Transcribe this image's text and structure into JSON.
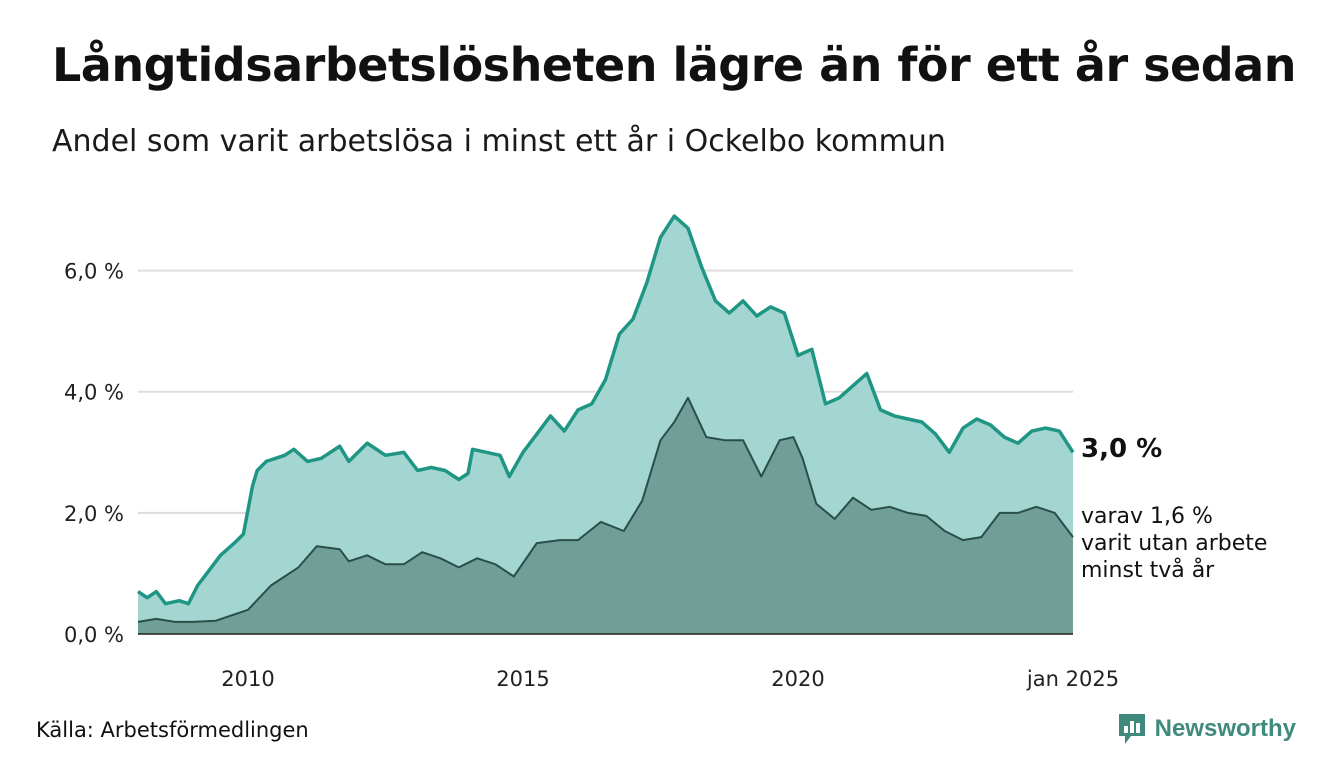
{
  "title": "Långtidsarbetslösheten lägre än för ett år sedan",
  "subtitle": "Andel som varit arbetslösa i minst ett år i Ockelbo kommun",
  "source": "Källa: Arbetsförmedlingen",
  "brand": "Newsworthy",
  "colors": {
    "total_line": "#1f9584",
    "total_fill": "#a3d6d0",
    "long_line": "#2a4f49",
    "long_fill": "#6f9f97",
    "grid": "#dddddd"
  },
  "chart_data": {
    "type": "area",
    "title": "Långtidsarbetslösheten lägre än för ett år sedan",
    "subtitle": "Andel som varit arbetslösa i minst ett år i Ockelbo kommun",
    "xlabel": "",
    "ylabel": "",
    "x_range": [
      "2008-01",
      "2025-01"
    ],
    "ylim": [
      0,
      7
    ],
    "yticks": [
      0,
      2,
      4,
      6
    ],
    "ytick_labels": [
      "0,0 %",
      "2,0 %",
      "4,0 %",
      "6,0 %"
    ],
    "xticks": [
      "2010-01",
      "2015-01",
      "2020-01",
      "2025-01"
    ],
    "xtick_labels": [
      "2010",
      "2015",
      "2020",
      "jan 2025"
    ],
    "grid": true,
    "series": [
      {
        "key": "total",
        "end_label": "3,0 %",
        "points": [
          [
            "2008-01",
            0.7
          ],
          [
            "2008-03",
            0.6
          ],
          [
            "2008-05",
            0.7
          ],
          [
            "2008-07",
            0.5
          ],
          [
            "2008-10",
            0.55
          ],
          [
            "2008-12",
            0.5
          ],
          [
            "2009-02",
            0.8
          ],
          [
            "2009-04",
            1.0
          ],
          [
            "2009-07",
            1.3
          ],
          [
            "2009-10",
            1.5
          ],
          [
            "2009-12",
            1.65
          ],
          [
            "2010-02",
            2.45
          ],
          [
            "2010-03",
            2.7
          ],
          [
            "2010-05",
            2.85
          ],
          [
            "2010-09",
            2.95
          ],
          [
            "2010-11",
            3.05
          ],
          [
            "2011-02",
            2.85
          ],
          [
            "2011-05",
            2.9
          ],
          [
            "2011-09",
            3.1
          ],
          [
            "2011-11",
            2.85
          ],
          [
            "2012-03",
            3.15
          ],
          [
            "2012-07",
            2.95
          ],
          [
            "2012-11",
            3.0
          ],
          [
            "2013-02",
            2.7
          ],
          [
            "2013-05",
            2.75
          ],
          [
            "2013-08",
            2.7
          ],
          [
            "2013-11",
            2.55
          ],
          [
            "2014-01",
            2.65
          ],
          [
            "2014-02",
            3.05
          ],
          [
            "2014-05",
            3.0
          ],
          [
            "2014-08",
            2.95
          ],
          [
            "2014-10",
            2.6
          ],
          [
            "2015-01",
            3.0
          ],
          [
            "2015-04",
            3.3
          ],
          [
            "2015-07",
            3.6
          ],
          [
            "2015-10",
            3.35
          ],
          [
            "2016-01",
            3.7
          ],
          [
            "2016-04",
            3.8
          ],
          [
            "2016-07",
            4.2
          ],
          [
            "2016-10",
            4.95
          ],
          [
            "2017-01",
            5.2
          ],
          [
            "2017-04",
            5.8
          ],
          [
            "2017-07",
            6.55
          ],
          [
            "2017-10",
            6.9
          ],
          [
            "2018-01",
            6.7
          ],
          [
            "2018-04",
            6.05
          ],
          [
            "2018-07",
            5.5
          ],
          [
            "2018-10",
            5.3
          ],
          [
            "2019-01",
            5.5
          ],
          [
            "2019-04",
            5.25
          ],
          [
            "2019-07",
            5.4
          ],
          [
            "2019-10",
            5.3
          ],
          [
            "2020-01",
            4.6
          ],
          [
            "2020-04",
            4.7
          ],
          [
            "2020-07",
            3.8
          ],
          [
            "2020-10",
            3.9
          ],
          [
            "2021-01",
            4.1
          ],
          [
            "2021-04",
            4.3
          ],
          [
            "2021-07",
            3.7
          ],
          [
            "2021-10",
            3.6
          ],
          [
            "2022-01",
            3.55
          ],
          [
            "2022-04",
            3.5
          ],
          [
            "2022-07",
            3.3
          ],
          [
            "2022-10",
            3.0
          ],
          [
            "2023-01",
            3.4
          ],
          [
            "2023-04",
            3.55
          ],
          [
            "2023-07",
            3.45
          ],
          [
            "2023-10",
            3.25
          ],
          [
            "2024-01",
            3.15
          ],
          [
            "2024-04",
            3.35
          ],
          [
            "2024-07",
            3.4
          ],
          [
            "2024-10",
            3.35
          ],
          [
            "2025-01",
            3.0
          ]
        ]
      },
      {
        "key": "long",
        "end_label_lines": [
          "varav 1,6 %",
          "varit utan arbete",
          "minst två år"
        ],
        "points": [
          [
            "2008-01",
            0.2
          ],
          [
            "2008-05",
            0.25
          ],
          [
            "2008-09",
            0.2
          ],
          [
            "2009-01",
            0.2
          ],
          [
            "2009-06",
            0.22
          ],
          [
            "2010-01",
            0.4
          ],
          [
            "2010-06",
            0.8
          ],
          [
            "2010-12",
            1.1
          ],
          [
            "2011-04",
            1.45
          ],
          [
            "2011-09",
            1.4
          ],
          [
            "2011-11",
            1.2
          ],
          [
            "2012-03",
            1.3
          ],
          [
            "2012-07",
            1.15
          ],
          [
            "2012-11",
            1.15
          ],
          [
            "2013-03",
            1.35
          ],
          [
            "2013-07",
            1.25
          ],
          [
            "2013-11",
            1.1
          ],
          [
            "2014-03",
            1.25
          ],
          [
            "2014-07",
            1.15
          ],
          [
            "2014-11",
            0.95
          ],
          [
            "2015-04",
            1.5
          ],
          [
            "2015-09",
            1.55
          ],
          [
            "2016-01",
            1.55
          ],
          [
            "2016-06",
            1.85
          ],
          [
            "2016-11",
            1.7
          ],
          [
            "2017-03",
            2.2
          ],
          [
            "2017-07",
            3.2
          ],
          [
            "2017-10",
            3.5
          ],
          [
            "2018-01",
            3.9
          ],
          [
            "2018-05",
            3.25
          ],
          [
            "2018-09",
            3.2
          ],
          [
            "2019-01",
            3.2
          ],
          [
            "2019-05",
            2.6
          ],
          [
            "2019-09",
            3.2
          ],
          [
            "2019-12",
            3.25
          ],
          [
            "2020-02",
            2.9
          ],
          [
            "2020-05",
            2.15
          ],
          [
            "2020-09",
            1.9
          ],
          [
            "2021-01",
            2.25
          ],
          [
            "2021-05",
            2.05
          ],
          [
            "2021-09",
            2.1
          ],
          [
            "2022-01",
            2.0
          ],
          [
            "2022-05",
            1.95
          ],
          [
            "2022-09",
            1.7
          ],
          [
            "2023-01",
            1.55
          ],
          [
            "2023-05",
            1.6
          ],
          [
            "2023-09",
            2.0
          ],
          [
            "2024-01",
            2.0
          ],
          [
            "2024-05",
            2.1
          ],
          [
            "2024-09",
            2.0
          ],
          [
            "2025-01",
            1.6
          ]
        ]
      }
    ]
  }
}
